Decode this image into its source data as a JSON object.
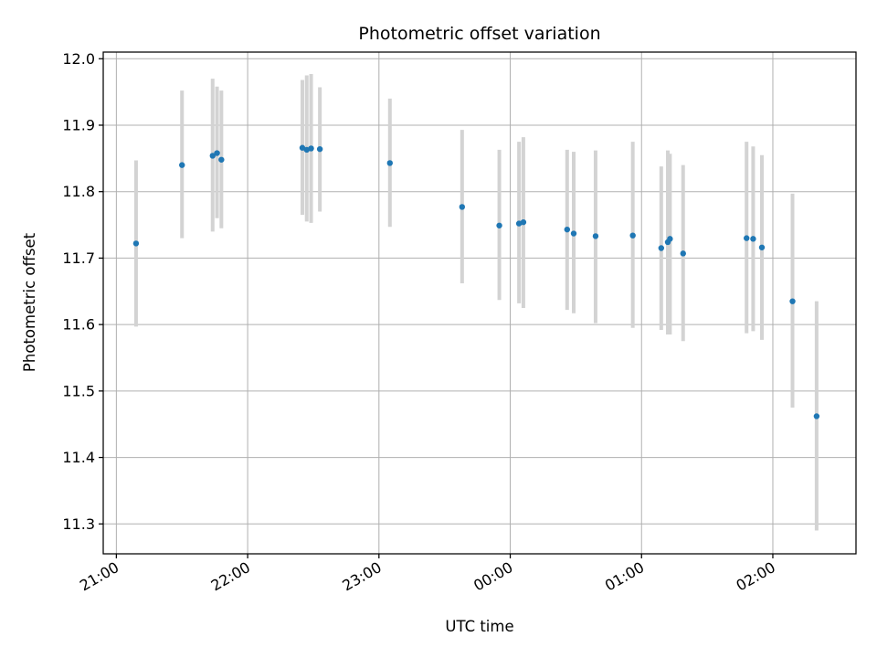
{
  "chart_data": {
    "type": "scatter",
    "title": "Photometric offset variation",
    "xlabel": "UTC time",
    "ylabel": "Photometric offset",
    "grid": true,
    "xlim": [
      "20:54",
      "26:38"
    ],
    "ylim": [
      11.255,
      12.01
    ],
    "xticks": [
      {
        "t": "21:00",
        "label": "21:00"
      },
      {
        "t": "22:00",
        "label": "22:00"
      },
      {
        "t": "23:00",
        "label": "23:00"
      },
      {
        "t": "24:00",
        "label": "00:00"
      },
      {
        "t": "25:00",
        "label": "01:00"
      },
      {
        "t": "26:00",
        "label": "02:00"
      }
    ],
    "yticks": [
      "11.3",
      "11.4",
      "11.5",
      "11.6",
      "11.7",
      "11.8",
      "11.9",
      "12.0"
    ],
    "colors": {
      "points": "#1f77b4",
      "errorbars": "#d3d3d3",
      "grid": "#b0b0b0"
    },
    "series": [
      {
        "points": [
          {
            "t": "21:09",
            "y": 11.722,
            "lo": 11.597,
            "hi": 11.847
          },
          {
            "t": "21:30",
            "y": 11.84,
            "lo": 11.73,
            "hi": 11.952
          },
          {
            "t": "21:44",
            "y": 11.854,
            "lo": 11.74,
            "hi": 11.97
          },
          {
            "t": "21:46",
            "y": 11.858,
            "lo": 11.76,
            "hi": 11.958
          },
          {
            "t": "21:48",
            "y": 11.848,
            "lo": 11.745,
            "hi": 11.952
          },
          {
            "t": "22:25",
            "y": 11.866,
            "lo": 11.765,
            "hi": 11.968
          },
          {
            "t": "22:27",
            "y": 11.863,
            "lo": 11.755,
            "hi": 11.975
          },
          {
            "t": "22:29",
            "y": 11.865,
            "lo": 11.753,
            "hi": 11.977
          },
          {
            "t": "22:33",
            "y": 11.864,
            "lo": 11.77,
            "hi": 11.957
          },
          {
            "t": "23:05",
            "y": 11.843,
            "lo": 11.747,
            "hi": 11.94
          },
          {
            "t": "23:38",
            "y": 11.777,
            "lo": 11.662,
            "hi": 11.893
          },
          {
            "t": "23:55",
            "y": 11.749,
            "lo": 11.637,
            "hi": 11.863
          },
          {
            "t": "24:04",
            "y": 11.752,
            "lo": 11.632,
            "hi": 11.875
          },
          {
            "t": "24:06",
            "y": 11.754,
            "lo": 11.625,
            "hi": 11.882
          },
          {
            "t": "24:26",
            "y": 11.743,
            "lo": 11.622,
            "hi": 11.863
          },
          {
            "t": "24:29",
            "y": 11.737,
            "lo": 11.617,
            "hi": 11.86
          },
          {
            "t": "24:39",
            "y": 11.733,
            "lo": 11.602,
            "hi": 11.862
          },
          {
            "t": "24:56",
            "y": 11.734,
            "lo": 11.595,
            "hi": 11.875
          },
          {
            "t": "25:09",
            "y": 11.715,
            "lo": 11.592,
            "hi": 11.838
          },
          {
            "t": "25:12",
            "y": 11.724,
            "lo": 11.585,
            "hi": 11.862
          },
          {
            "t": "25:13",
            "y": 11.729,
            "lo": 11.585,
            "hi": 11.857
          },
          {
            "t": "25:19",
            "y": 11.707,
            "lo": 11.575,
            "hi": 11.84
          },
          {
            "t": "25:48",
            "y": 11.73,
            "lo": 11.587,
            "hi": 11.875
          },
          {
            "t": "25:51",
            "y": 11.729,
            "lo": 11.59,
            "hi": 11.868
          },
          {
            "t": "25:55",
            "y": 11.716,
            "lo": 11.577,
            "hi": 11.855
          },
          {
            "t": "26:09",
            "y": 11.635,
            "lo": 11.475,
            "hi": 11.797
          },
          {
            "t": "26:20",
            "y": 11.462,
            "lo": 11.29,
            "hi": 11.635
          }
        ]
      }
    ]
  }
}
